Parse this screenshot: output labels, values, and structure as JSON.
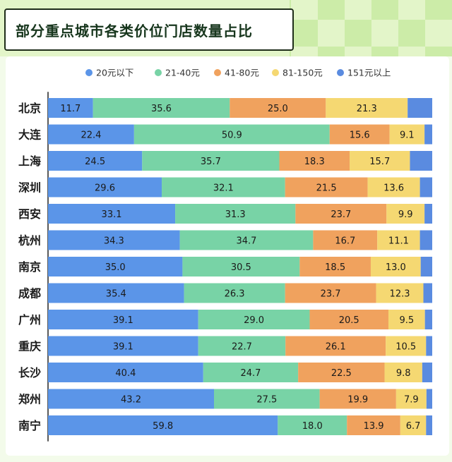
{
  "title": "部分重点城市各类价位门店数量占比",
  "colors": {
    "header_bg": "#e3f5c9",
    "checker_light": "#d2efb0",
    "checker_dark": "#b9e48c",
    "series": [
      "#5b95e8",
      "#78d3a6",
      "#f0a25e",
      "#f5d872",
      "#5a8be0"
    ]
  },
  "chart_data": {
    "type": "bar",
    "orientation": "horizontal",
    "stacked": true,
    "title": "部分重点城市各类价位门店数量占比",
    "categories": [
      "北京",
      "大连",
      "上海",
      "深圳",
      "西安",
      "杭州",
      "南京",
      "成都",
      "广州",
      "重庆",
      "长沙",
      "郑州",
      "南宁"
    ],
    "series": [
      {
        "name": "20元以下",
        "values": [
          11.7,
          22.4,
          24.5,
          29.6,
          33.1,
          34.3,
          35.0,
          35.4,
          39.1,
          39.1,
          40.4,
          43.2,
          59.8
        ]
      },
      {
        "name": "21-40元",
        "values": [
          35.6,
          50.9,
          35.7,
          32.1,
          31.3,
          34.7,
          30.5,
          26.3,
          29.0,
          22.7,
          24.7,
          27.5,
          18.0
        ]
      },
      {
        "name": "41-80元",
        "values": [
          25.0,
          15.6,
          18.3,
          21.5,
          23.7,
          16.7,
          18.5,
          23.7,
          20.5,
          26.1,
          22.5,
          19.9,
          13.9
        ]
      },
      {
        "name": "81-150元",
        "values": [
          21.3,
          9.1,
          15.7,
          13.6,
          9.9,
          11.1,
          13.0,
          12.3,
          9.5,
          10.5,
          9.8,
          7.9,
          6.7
        ]
      },
      {
        "name": "151元以上",
        "values": [
          6.4,
          2.0,
          5.8,
          3.2,
          2.0,
          3.2,
          3.0,
          2.3,
          1.9,
          1.6,
          2.6,
          1.5,
          1.6
        ]
      }
    ],
    "xlim": [
      0,
      100
    ],
    "value_labels_shown_for_series": [
      0,
      1,
      2,
      3
    ],
    "legend_position": "top-right",
    "grid": false
  }
}
